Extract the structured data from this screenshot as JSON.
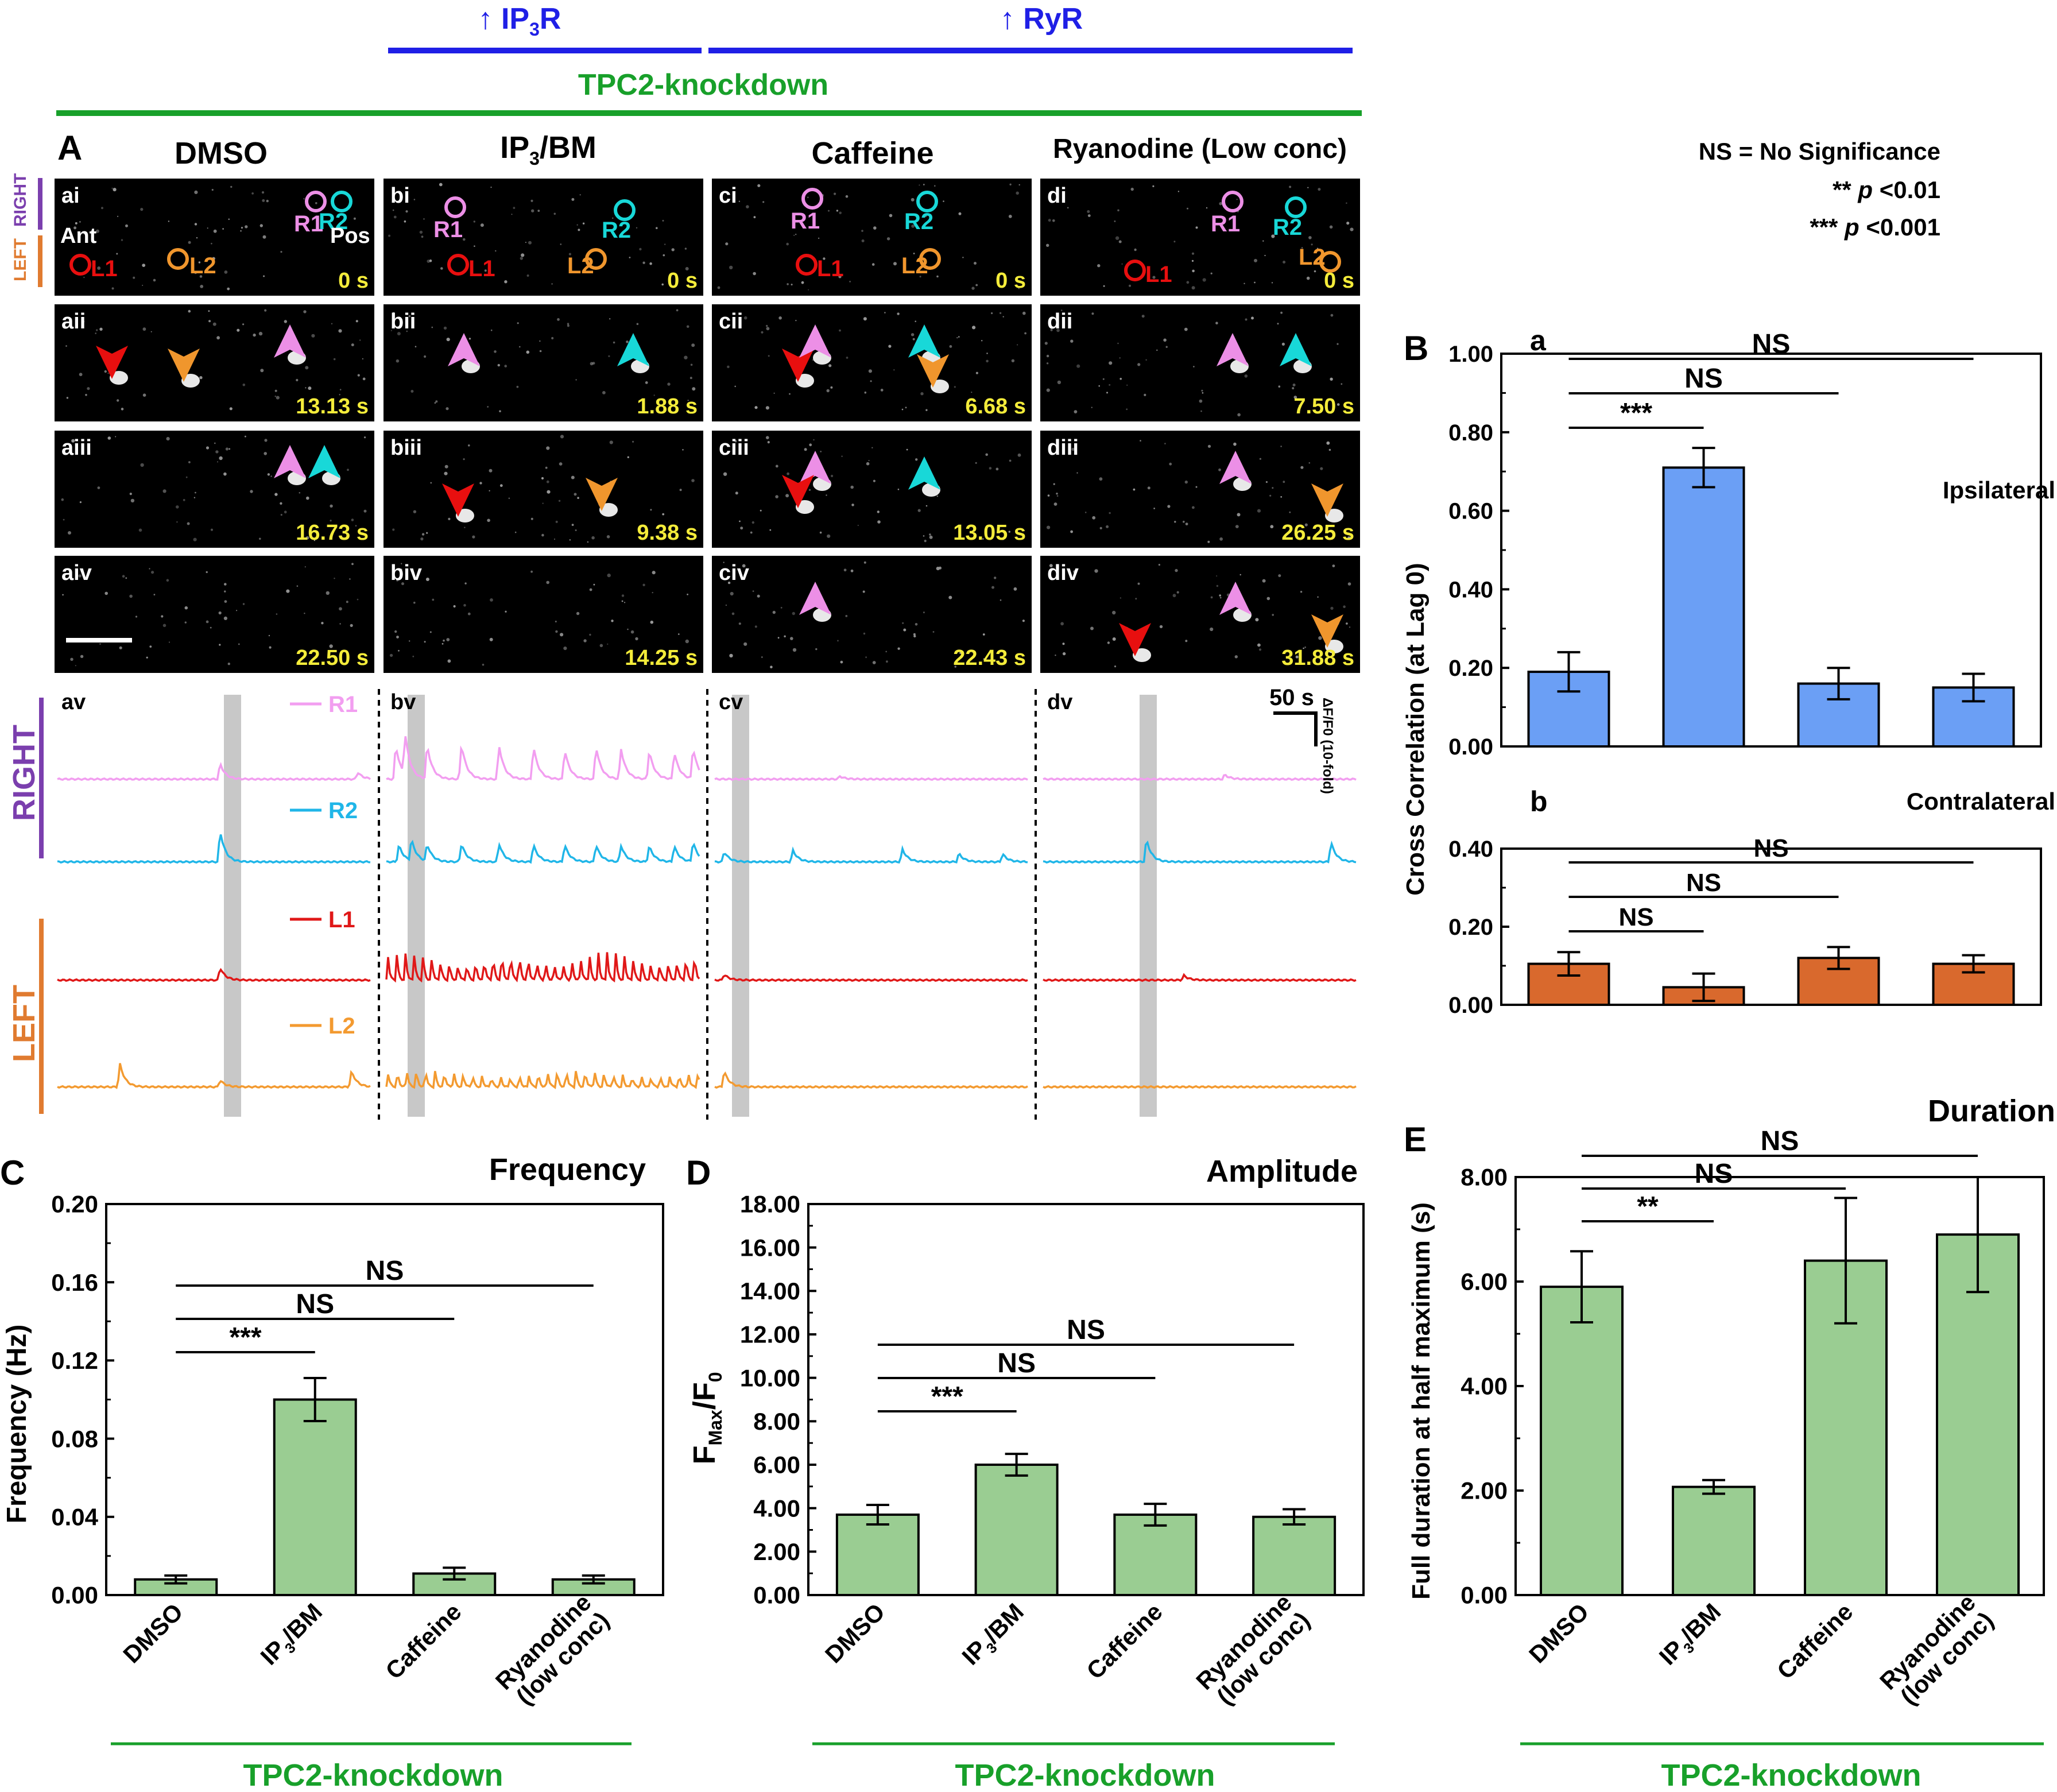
{
  "header": {
    "ip3r_label": "↑ IP3R",
    "ryr_label": "↑ RyR",
    "tpc2_label": "TPC2-knockdown",
    "blue": "#1f1fe6",
    "green": "#18a02a"
  },
  "legend": {
    "ns": "NS = No Significance",
    "p01": "** p <0.01",
    "p001": "*** p <0.001"
  },
  "panelA": {
    "letter": "A",
    "columns": [
      "DMSO",
      "IP3/BM",
      "Caffeine",
      "Ryanodine (Low conc)"
    ],
    "side_right": "RIGHT",
    "side_left": "LEFT",
    "rows": [
      {
        "labels": [
          "ai",
          "bi",
          "ci",
          "di"
        ],
        "times": [
          "0 s",
          "0 s",
          "0 s",
          "0 s"
        ]
      },
      {
        "labels": [
          "aii",
          "bii",
          "cii",
          "dii"
        ],
        "times": [
          "13.13 s",
          "1.88 s",
          "6.68 s",
          "7.50 s"
        ]
      },
      {
        "labels": [
          "aiii",
          "biii",
          "ciii",
          "diii"
        ],
        "times": [
          "16.73 s",
          "9.38 s",
          "13.05 s",
          "26.25 s"
        ]
      },
      {
        "labels": [
          "aiv",
          "biv",
          "civ",
          "div"
        ],
        "times": [
          "22.50 s",
          "14.25 s",
          "22.43 s",
          "31.88 s"
        ]
      }
    ],
    "roi_names": {
      "r1": "R1",
      "r2": "R2",
      "l1": "L1",
      "l2": "L2",
      "ant": "Ant",
      "pos": "Pos"
    },
    "trace_labels": [
      "av",
      "bv",
      "cv",
      "dv"
    ],
    "trace_names": [
      "R1",
      "R2",
      "L1",
      "L2"
    ],
    "trace_colors": [
      "#f29ef0",
      "#20b6e8",
      "#e01818",
      "#f39a30"
    ],
    "scale_time": "50 s",
    "scale_amp": "ΔF/F0 (10-fold)",
    "colors": {
      "r1": "#ec8fe6",
      "r2": "#18d8d8",
      "l1": "#e80f0f",
      "l2": "#f0962d",
      "time": "#f4ec3a",
      "right": "#7b3fae",
      "left": "#e07b30"
    }
  },
  "panelB": {
    "letter": "B",
    "ylabel": "Cross Correlation (at Lag 0)",
    "ipsi_label": "Ipsilateral",
    "contra_label": "Contralateral",
    "sub_a": "a",
    "sub_b": "b",
    "ipsi_color": "#6b9ff5",
    "contra_color": "#d9692d"
  },
  "panelC": {
    "letter": "C",
    "title": "Frequency",
    "ylabel": "Frequency (Hz)",
    "footer": "TPC2-knockdown"
  },
  "panelD": {
    "letter": "D",
    "title": "Amplitude",
    "ylabel": "F_Max/F_0",
    "footer": "TPC2-knockdown"
  },
  "panelE": {
    "letter": "E",
    "title": "Duration",
    "ylabel": "Full duration at half maximum (s)",
    "footer": "TPC2-knockdown"
  },
  "categories": [
    "DMSO",
    "IP3/BM",
    "Caffeine",
    "Ryanodine (low conc)"
  ],
  "chart_data": [
    {
      "type": "bar",
      "id": "B-a",
      "title": "Ipsilateral",
      "ylabel": "Cross Correlation (at Lag 0)",
      "categories": [
        "DMSO",
        "IP3/BM",
        "Caffeine",
        "Ryanodine (low conc)"
      ],
      "values": [
        0.19,
        0.71,
        0.16,
        0.15
      ],
      "errors": [
        0.05,
        0.05,
        0.04,
        0.035
      ],
      "ylim": [
        0,
        1.0
      ],
      "yticks": [
        "0.00",
        "0.20",
        "0.40",
        "0.60",
        "0.80",
        "1.00"
      ],
      "significance": [
        {
          "from": 0,
          "to": 1,
          "label": "***"
        },
        {
          "from": 0,
          "to": 2,
          "label": "NS"
        },
        {
          "from": 0,
          "to": 3,
          "label": "NS"
        }
      ]
    },
    {
      "type": "bar",
      "id": "B-b",
      "title": "Contralateral",
      "ylabel": "Cross Correlation (at Lag 0)",
      "categories": [
        "DMSO",
        "IP3/BM",
        "Caffeine",
        "Ryanodine (low conc)"
      ],
      "values": [
        0.105,
        0.045,
        0.12,
        0.105
      ],
      "errors": [
        0.03,
        0.035,
        0.028,
        0.022
      ],
      "ylim": [
        0,
        0.4
      ],
      "yticks": [
        "0.00",
        "0.20",
        "0.40"
      ],
      "significance": [
        {
          "from": 0,
          "to": 1,
          "label": "NS"
        },
        {
          "from": 0,
          "to": 2,
          "label": "NS"
        },
        {
          "from": 0,
          "to": 3,
          "label": "NS"
        }
      ]
    },
    {
      "type": "bar",
      "id": "C",
      "title": "Frequency",
      "ylabel": "Frequency (Hz)",
      "categories": [
        "DMSO",
        "IP3/BM",
        "Caffeine",
        "Ryanodine (low conc)"
      ],
      "values": [
        0.008,
        0.1,
        0.011,
        0.008
      ],
      "errors": [
        0.002,
        0.011,
        0.003,
        0.002
      ],
      "ylim": [
        0,
        0.2
      ],
      "yticks": [
        "0.00",
        "0.04",
        "0.08",
        "0.12",
        "0.16",
        "0.20"
      ],
      "significance": [
        {
          "from": 0,
          "to": 1,
          "label": "***"
        },
        {
          "from": 0,
          "to": 2,
          "label": "NS"
        },
        {
          "from": 0,
          "to": 3,
          "label": "NS"
        }
      ]
    },
    {
      "type": "bar",
      "id": "D",
      "title": "Amplitude",
      "ylabel": "F_Max/F_0",
      "categories": [
        "DMSO",
        "IP3/BM",
        "Caffeine",
        "Ryanodine (low conc)"
      ],
      "values": [
        3.7,
        6.0,
        3.7,
        3.6
      ],
      "errors": [
        0.45,
        0.5,
        0.5,
        0.35
      ],
      "ylim": [
        0,
        18
      ],
      "yticks": [
        "0.00",
        "2.00",
        "4.00",
        "6.00",
        "8.00",
        "10.00",
        "12.00",
        "14.00",
        "16.00",
        "18.00"
      ],
      "significance": [
        {
          "from": 0,
          "to": 1,
          "label": "***"
        },
        {
          "from": 0,
          "to": 2,
          "label": "NS"
        },
        {
          "from": 0,
          "to": 3,
          "label": "NS"
        }
      ]
    },
    {
      "type": "bar",
      "id": "E",
      "title": "Duration",
      "ylabel": "Full duration at half maximum (s)",
      "categories": [
        "DMSO",
        "IP3/BM",
        "Caffeine",
        "Ryanodine (low conc)"
      ],
      "values": [
        5.9,
        2.07,
        6.4,
        6.9
      ],
      "errors": [
        0.68,
        0.13,
        1.2,
        1.1
      ],
      "ylim": [
        0,
        8
      ],
      "yticks": [
        "0.00",
        "2.00",
        "4.00",
        "6.00",
        "8.00"
      ],
      "significance": [
        {
          "from": 0,
          "to": 1,
          "label": "**"
        },
        {
          "from": 0,
          "to": 2,
          "label": "NS"
        },
        {
          "from": 0,
          "to": 3,
          "label": "NS"
        }
      ]
    }
  ]
}
